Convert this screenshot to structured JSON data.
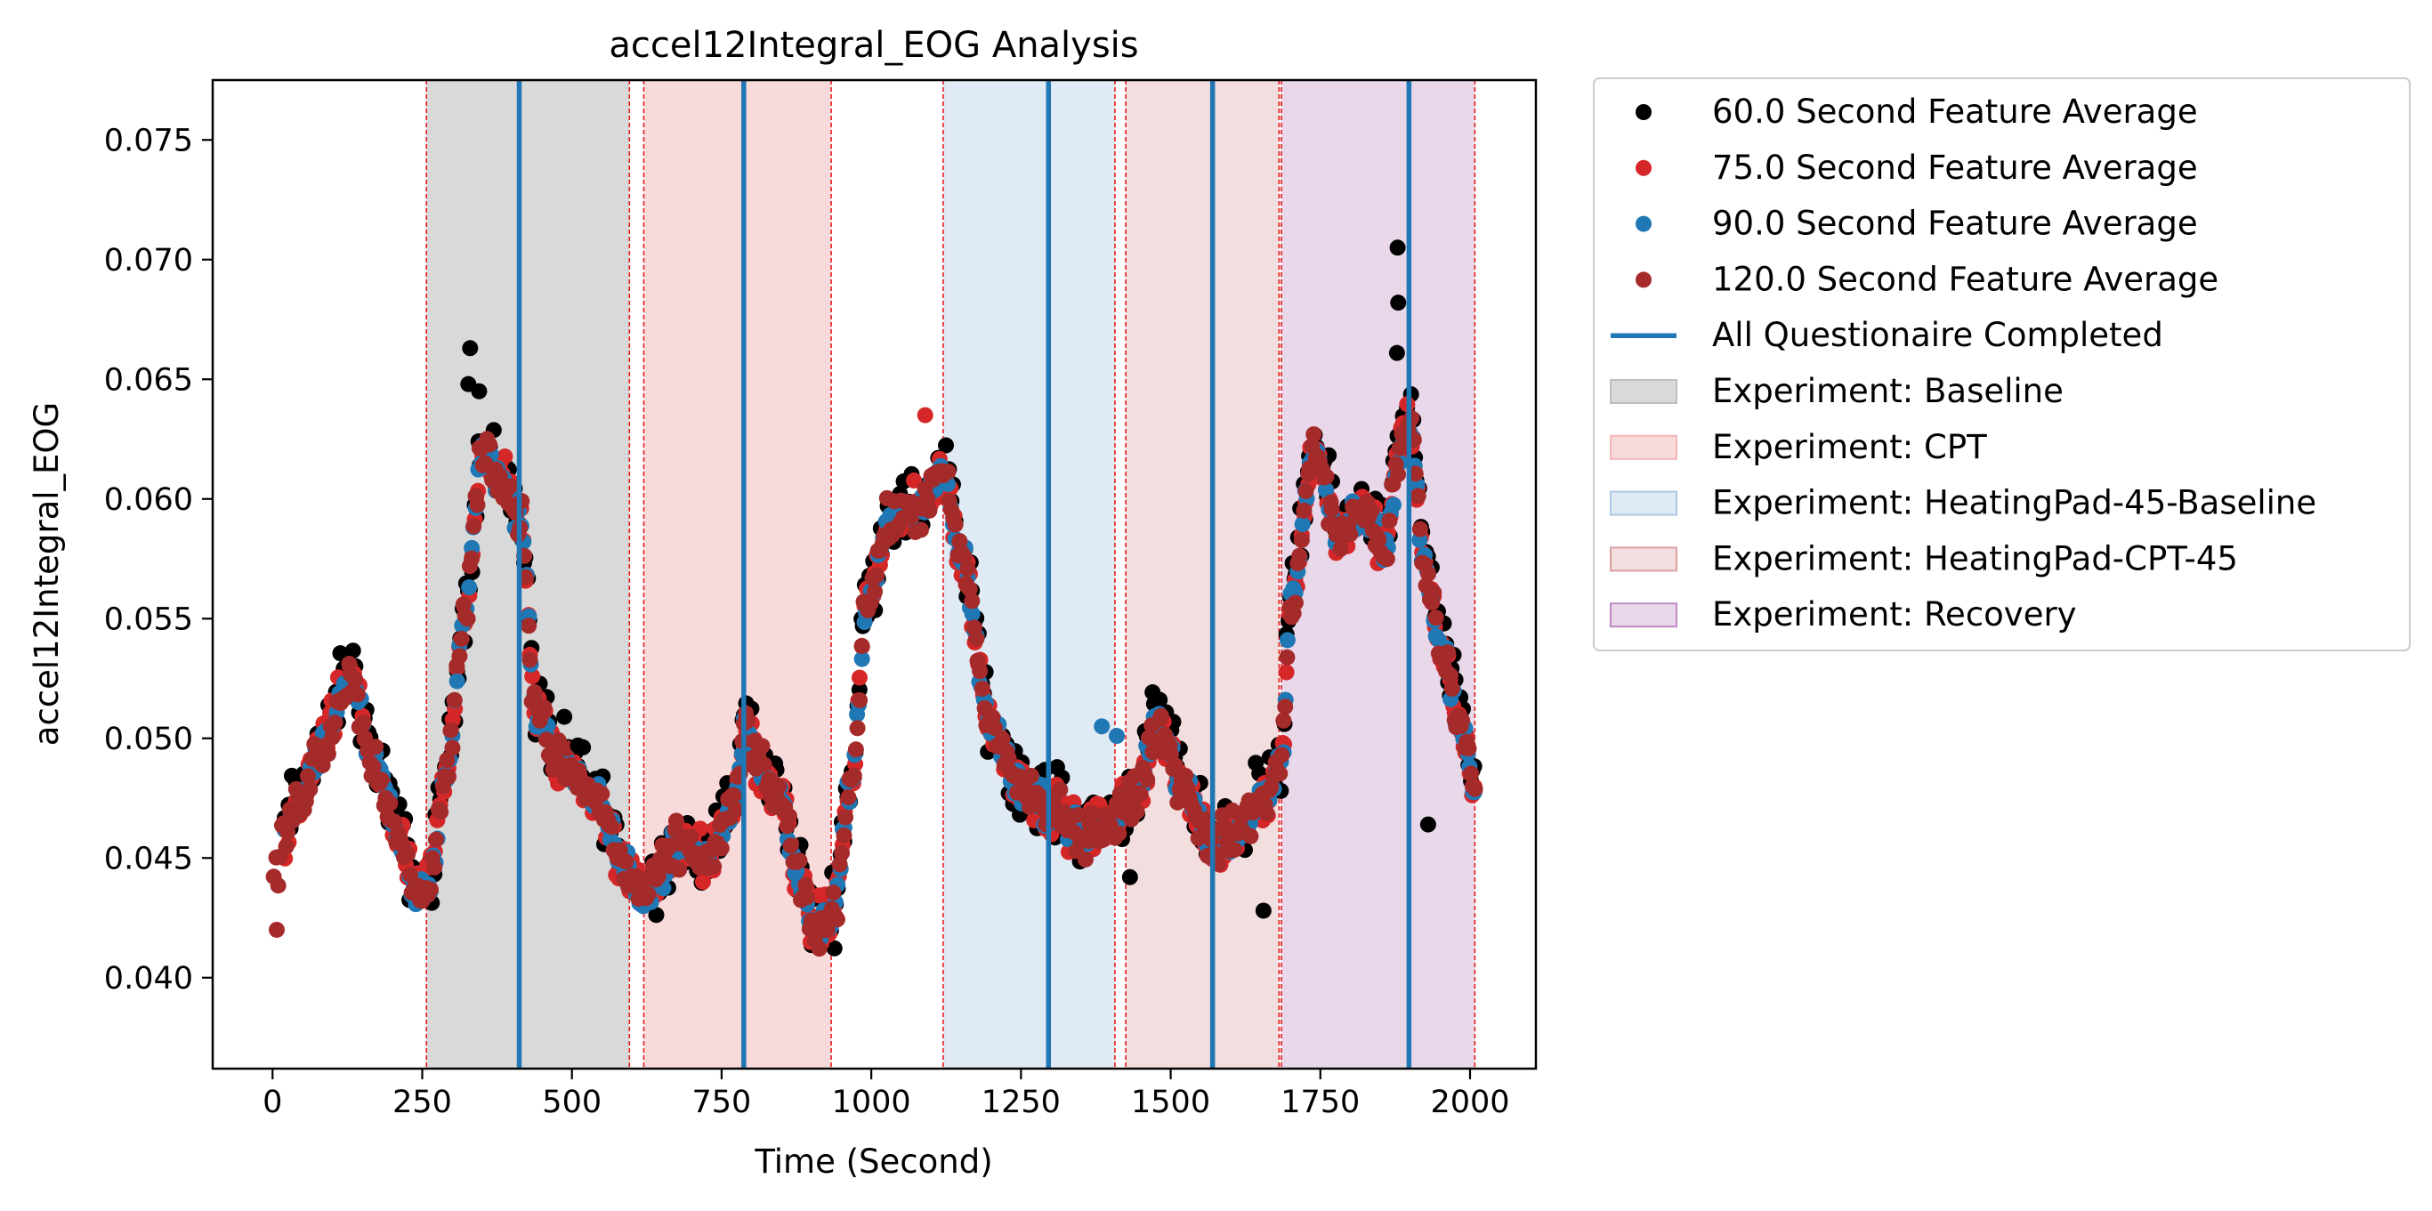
{
  "chart_data": {
    "type": "scatter",
    "title": "accel12Integral_EOG Analysis",
    "xlabel": "Time (Second)",
    "ylabel": "accel12Integral_EOG",
    "xlim": [
      -100,
      2110
    ],
    "ylim": [
      0.0362,
      0.0775
    ],
    "xticks": [
      0,
      250,
      500,
      750,
      1000,
      1250,
      1500,
      1750,
      2000
    ],
    "xtick_labels": [
      "0",
      "250",
      "500",
      "750",
      "1000",
      "1250",
      "1500",
      "1750",
      "2000"
    ],
    "yticks": [
      0.04,
      0.045,
      0.05,
      0.055,
      0.06,
      0.065,
      0.07,
      0.075
    ],
    "ytick_labels": [
      "0.040",
      "0.045",
      "0.050",
      "0.055",
      "0.060",
      "0.065",
      "0.070",
      "0.075"
    ],
    "grid": false,
    "legend_position": "outside-right-top",
    "series_color_keys": [
      "black",
      "red",
      "blue",
      "darkred"
    ],
    "series": [
      {
        "name": "60.0 Second Feature Average",
        "color": "#000000",
        "offset": 0.0003,
        "noise": 0.0012
      },
      {
        "name": "75.0 Second Feature Average",
        "color": "#d62728",
        "offset": 0.0,
        "noise": 0.0009
      },
      {
        "name": "90.0 Second Feature Average",
        "color": "#1f77b4",
        "offset": 0.0,
        "noise": 0.0006
      },
      {
        "name": "120.0 Second Feature Average",
        "color": "#a52a2a",
        "offset": 0.0,
        "noise": 0.0008
      }
    ],
    "trend": {
      "x": [
        0,
        40,
        80,
        130,
        170,
        215,
        240,
        262,
        290,
        320,
        350,
        380,
        415,
        440,
        480,
        540,
        590,
        620,
        680,
        730,
        770,
        790,
        815,
        850,
        875,
        905,
        935,
        965,
        995,
        1030,
        1080,
        1120,
        1150,
        1200,
        1250,
        1300,
        1350,
        1400,
        1440,
        1480,
        1520,
        1570,
        1600,
        1660,
        1685,
        1700,
        1740,
        1780,
        1820,
        1860,
        1880,
        1900,
        1925,
        1955,
        1985,
        2010
      ],
      "y": [
        0.0445,
        0.047,
        0.0495,
        0.0525,
        0.049,
        0.0455,
        0.0435,
        0.044,
        0.0485,
        0.055,
        0.062,
        0.061,
        0.059,
        0.051,
        0.049,
        0.0475,
        0.0445,
        0.0435,
        0.0455,
        0.045,
        0.047,
        0.0505,
        0.0485,
        0.0475,
        0.0445,
        0.042,
        0.0425,
        0.048,
        0.056,
        0.059,
        0.0595,
        0.061,
        0.0575,
        0.0505,
        0.048,
        0.047,
        0.046,
        0.0465,
        0.0475,
        0.0505,
        0.048,
        0.0455,
        0.046,
        0.0475,
        0.049,
        0.0555,
        0.062,
        0.0585,
        0.0595,
        0.058,
        0.062,
        0.063,
        0.057,
        0.0535,
        0.0505,
        0.0475
      ]
    },
    "outliers": [
      {
        "x": 7,
        "y": 0.042,
        "color": "#a52a2a"
      },
      {
        "x": 330,
        "y": 0.0663,
        "color": "#000000"
      },
      {
        "x": 327,
        "y": 0.0648,
        "color": "#000000"
      },
      {
        "x": 345,
        "y": 0.0645,
        "color": "#000000"
      },
      {
        "x": 1879,
        "y": 0.0705,
        "color": "#000000"
      },
      {
        "x": 1880,
        "y": 0.0682,
        "color": "#000000"
      },
      {
        "x": 1878,
        "y": 0.0661,
        "color": "#000000"
      },
      {
        "x": 1655,
        "y": 0.0428,
        "color": "#000000"
      },
      {
        "x": 510,
        "y": 0.0497,
        "color": "#000000"
      },
      {
        "x": 1385,
        "y": 0.0505,
        "color": "#1f77b4"
      },
      {
        "x": 1410,
        "y": 0.0501,
        "color": "#1f77b4"
      },
      {
        "x": 1432,
        "y": 0.0442,
        "color": "#000000"
      },
      {
        "x": 1090,
        "y": 0.0635,
        "color": "#d62728"
      },
      {
        "x": 1930,
        "y": 0.0464,
        "color": "#000000"
      }
    ],
    "spans": [
      {
        "label": "Experiment: Baseline",
        "x0": 257,
        "x1": 596,
        "color": "#bfbfbf",
        "opacity": 0.6
      },
      {
        "label": "Experiment: CPT",
        "x0": 620,
        "x1": 933,
        "color": "#f4b6b8",
        "opacity": 0.5
      },
      {
        "label": "Experiment: HeatingPad-45-Baseline",
        "x0": 1120,
        "x1": 1407,
        "color": "#aecbe5",
        "opacity": 0.4
      },
      {
        "label": "Experiment: HeatingPad-CPT-45",
        "x0": 1425,
        "x1": 1681,
        "color": "#dba0a0",
        "opacity": 0.35
      },
      {
        "label": "Experiment: Recovery",
        "x0": 1685,
        "x1": 2008,
        "color": "#c08bc4",
        "opacity": 0.35
      }
    ],
    "span_edges": [
      257,
      596,
      620,
      933,
      1120,
      1407,
      1425,
      1681,
      1685,
      2008
    ],
    "questionnaire_lines": {
      "label": "All Questionaire Completed",
      "color": "#1f77b4",
      "x": [
        412,
        787,
        1296,
        1570,
        1898
      ]
    },
    "legend_entries": [
      {
        "label": "60.0 Second Feature Average",
        "kind": "marker",
        "color": "#000000"
      },
      {
        "label": "75.0 Second Feature Average",
        "kind": "marker",
        "color": "#d62728"
      },
      {
        "label": "90.0 Second Feature Average",
        "kind": "marker",
        "color": "#1f77b4"
      },
      {
        "label": "120.0 Second Feature Average",
        "kind": "marker",
        "color": "#a52a2a"
      },
      {
        "label": "All Questionaire Completed",
        "kind": "line",
        "color": "#1f77b4"
      },
      {
        "label": "Experiment: Baseline",
        "kind": "patch",
        "color": "#bfbfbf",
        "opacity": 0.6
      },
      {
        "label": "Experiment: CPT",
        "kind": "patch",
        "color": "#f4b6b8",
        "opacity": 0.5
      },
      {
        "label": "Experiment: HeatingPad-45-Baseline",
        "kind": "patch",
        "color": "#aecbe5",
        "opacity": 0.4
      },
      {
        "label": "Experiment: HeatingPad-CPT-45",
        "kind": "patch",
        "color": "#dba0a0",
        "opacity": 0.35
      },
      {
        "label": "Experiment: Recovery",
        "kind": "patch",
        "color": "#c08bc4",
        "opacity": 0.35
      }
    ]
  }
}
